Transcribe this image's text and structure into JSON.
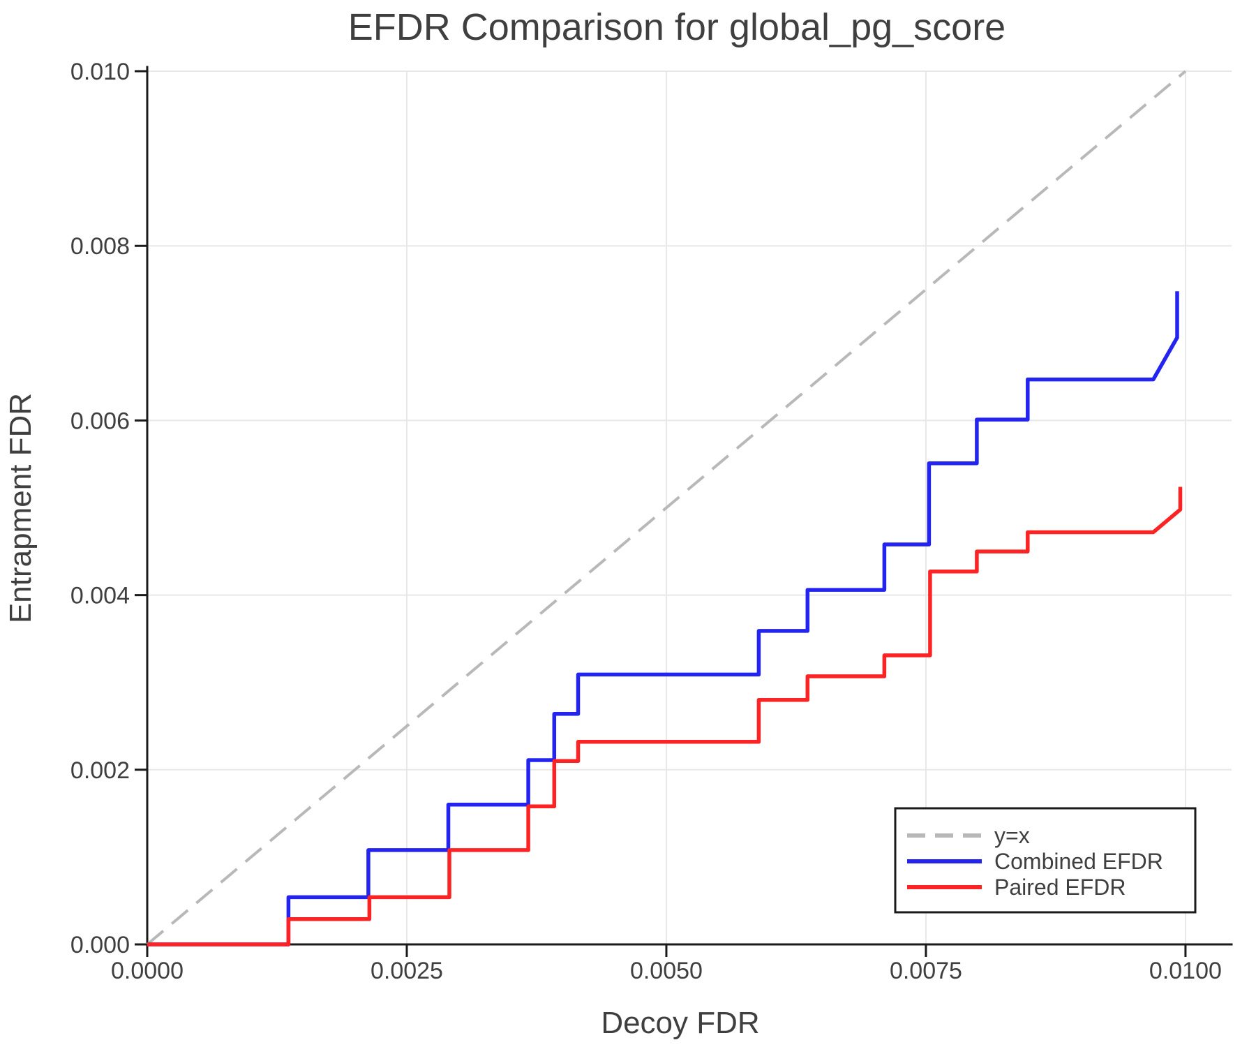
{
  "chart_data": {
    "type": "line",
    "title": "EFDR Comparison for global_pg_score",
    "xlabel": "Decoy FDR",
    "ylabel": "Entrapment FDR",
    "xlim": [
      0.0,
      0.010444
    ],
    "ylim": [
      0.0,
      0.01
    ],
    "grid": true,
    "legend_position": "lower right",
    "background_color": "#ffffff",
    "gridline_color": "#e8e8e8",
    "text_color": "#3f3f3f",
    "x_ticks": [
      0.0,
      0.0025,
      0.005,
      0.0075,
      0.01
    ],
    "x_tick_labels": [
      "0.0000",
      "0.0025",
      "0.0050",
      "0.0075",
      "0.0100"
    ],
    "y_ticks": [
      0.0,
      0.002,
      0.004,
      0.006,
      0.008,
      0.01
    ],
    "y_tick_labels": [
      "0.000",
      "0.002",
      "0.004",
      "0.006",
      "0.008",
      "0.010"
    ],
    "series": [
      {
        "name": "y=x",
        "color": "#b8b8b8",
        "style": "dashed",
        "width": 4,
        "dash": "30 16",
        "points": [
          [
            0.0,
            0.0
          ],
          [
            0.01,
            0.01
          ]
        ]
      },
      {
        "name": "Combined EFDR",
        "color": "#2424f0",
        "style": "solid",
        "width": 5.5,
        "points": [
          [
            0.0,
            0.0
          ],
          [
            0.00136,
            0.0
          ],
          [
            0.00136,
            0.00054
          ],
          [
            0.00213,
            0.00054
          ],
          [
            0.00213,
            0.00108
          ],
          [
            0.0029,
            0.00108
          ],
          [
            0.0029,
            0.0016
          ],
          [
            0.00367,
            0.0016
          ],
          [
            0.00367,
            0.00211
          ],
          [
            0.00392,
            0.00211
          ],
          [
            0.00392,
            0.00264
          ],
          [
            0.00415,
            0.00264
          ],
          [
            0.00415,
            0.00309
          ],
          [
            0.00589,
            0.00309
          ],
          [
            0.00589,
            0.00359
          ],
          [
            0.00636,
            0.00359
          ],
          [
            0.00636,
            0.00406
          ],
          [
            0.0071,
            0.00406
          ],
          [
            0.0071,
            0.00458
          ],
          [
            0.00753,
            0.00458
          ],
          [
            0.00753,
            0.00551
          ],
          [
            0.00799,
            0.00551
          ],
          [
            0.00799,
            0.00601
          ],
          [
            0.00848,
            0.00601
          ],
          [
            0.00848,
            0.00647
          ],
          [
            0.00969,
            0.00647
          ],
          [
            0.00992,
            0.00695
          ],
          [
            0.00992,
            0.00748
          ]
        ]
      },
      {
        "name": "Paired EFDR",
        "color": "#fb2323",
        "style": "solid",
        "width": 5.5,
        "points": [
          [
            0.0,
            0.0
          ],
          [
            0.00136,
            0.0
          ],
          [
            0.00136,
            0.00029
          ],
          [
            0.00214,
            0.00029
          ],
          [
            0.00214,
            0.00054
          ],
          [
            0.00291,
            0.00054
          ],
          [
            0.00291,
            0.00108
          ],
          [
            0.00367,
            0.00108
          ],
          [
            0.00367,
            0.00158
          ],
          [
            0.00392,
            0.00158
          ],
          [
            0.00392,
            0.0021
          ],
          [
            0.00415,
            0.0021
          ],
          [
            0.00415,
            0.00232
          ],
          [
            0.00589,
            0.00232
          ],
          [
            0.00589,
            0.0028
          ],
          [
            0.00636,
            0.0028
          ],
          [
            0.00636,
            0.00307
          ],
          [
            0.0071,
            0.00307
          ],
          [
            0.0071,
            0.00331
          ],
          [
            0.00754,
            0.00331
          ],
          [
            0.00754,
            0.00427
          ],
          [
            0.00799,
            0.00427
          ],
          [
            0.00799,
            0.0045
          ],
          [
            0.00848,
            0.0045
          ],
          [
            0.00848,
            0.00472
          ],
          [
            0.00969,
            0.00472
          ],
          [
            0.00995,
            0.00498
          ],
          [
            0.00995,
            0.00524
          ]
        ]
      }
    ]
  }
}
